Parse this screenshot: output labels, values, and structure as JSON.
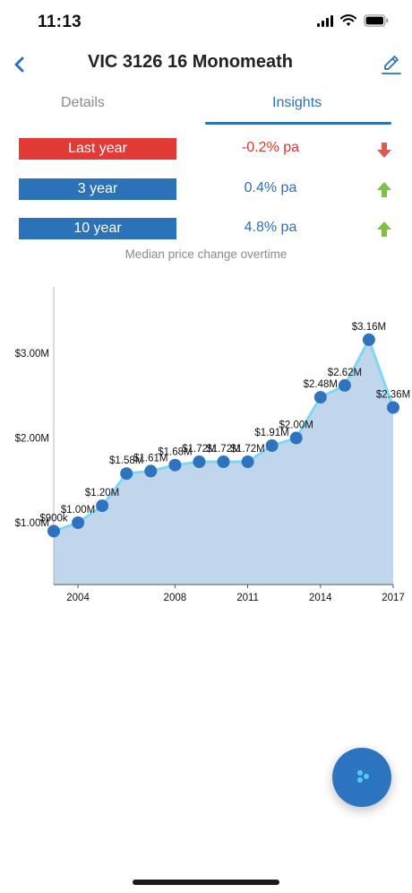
{
  "status_bar": {
    "time": "11:13"
  },
  "nav": {
    "title": "VIC 3126 16 Monomeath"
  },
  "tabs": [
    {
      "label": "Details",
      "active": false
    },
    {
      "label": "Insights",
      "active": true
    }
  ],
  "stats": [
    {
      "label": "Last year",
      "value": "-0.2% pa",
      "trend": "down",
      "label_color": "#e23a35",
      "value_color": "#d8392f",
      "arrow_color": "#e05a55"
    },
    {
      "label": "3 year",
      "value": "0.4% pa",
      "trend": "up",
      "label_color": "#2b72b8",
      "value_color": "#2b72b8",
      "arrow_color": "#7cc242"
    },
    {
      "label": "10 year",
      "value": "4.8% pa",
      "trend": "up",
      "label_color": "#2b72b8",
      "value_color": "#2b72b8",
      "arrow_color": "#7cc242"
    }
  ],
  "caption": "Median price change overtime",
  "chart_data": {
    "type": "area",
    "x": [
      2003,
      2004,
      2005,
      2006,
      2007,
      2008,
      2009,
      2010,
      2011,
      2012,
      2013,
      2014,
      2015,
      2016,
      2017
    ],
    "values": [
      0.9,
      1.0,
      1.2,
      1.58,
      1.61,
      1.68,
      1.72,
      1.72,
      1.72,
      1.91,
      2.0,
      2.48,
      2.62,
      3.16,
      2.36
    ],
    "point_labels": [
      "$900k",
      "$1.00M",
      "$1.20M",
      "$1.58M",
      "$1.61M",
      "$1.68M",
      "$1.72M",
      "$1.72M",
      "$1.72M",
      "$1.91M",
      "$2.00M",
      "$2.48M",
      "$2.62M",
      "$3.16M",
      "$2.36M"
    ],
    "y_ticks": [
      1.0,
      2.0,
      3.0
    ],
    "y_tick_labels": [
      "$1.00M",
      "$2.00M",
      "$3.00M"
    ],
    "x_ticks": [
      2004,
      2008,
      2011,
      2014,
      2017
    ],
    "x_tick_labels": [
      "2004",
      "2008",
      "2011",
      "2014",
      "2017"
    ],
    "colors": {
      "fill": "#bfd6ec",
      "line": "#7fd8f2",
      "point": "#2f72bd"
    }
  },
  "fab": {
    "icon": "share-icon",
    "color": "#2c73c0"
  }
}
